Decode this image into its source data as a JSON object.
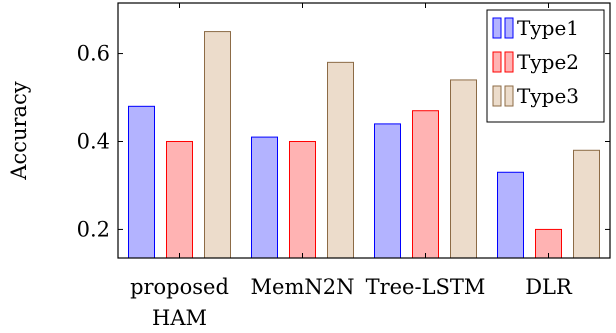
{
  "chart_data": {
    "type": "bar",
    "categories": [
      "proposed HAM",
      "MemN2N",
      "Tree-LSTM",
      "DLR"
    ],
    "category_label_lines": [
      [
        "proposed",
        "HAM"
      ],
      [
        "MemN2N"
      ],
      [
        "Tree-LSTM"
      ],
      [
        "DLR"
      ]
    ],
    "series": [
      {
        "name": "Type1",
        "values": [
          0.48,
          0.41,
          0.44,
          0.33
        ],
        "fill": "#b3b3ff",
        "stroke": "#0000ff"
      },
      {
        "name": "Type2",
        "values": [
          0.4,
          0.4,
          0.47,
          0.2
        ],
        "fill": "#ffb3b3",
        "stroke": "#ff0000"
      },
      {
        "name": "Type3",
        "values": [
          0.65,
          0.58,
          0.54,
          0.38
        ],
        "fill": "#ecdccb",
        "stroke": "#8c6b46"
      }
    ],
    "title": "",
    "xlabel": "",
    "ylabel": "Accuracy",
    "ylim": [
      0.135,
      0.715
    ],
    "yticks": [
      0.2,
      0.4,
      0.6
    ],
    "ytick_labels": [
      "0.2",
      "0.4",
      "0.6"
    ],
    "grid": false,
    "legend_position": "top-right"
  }
}
